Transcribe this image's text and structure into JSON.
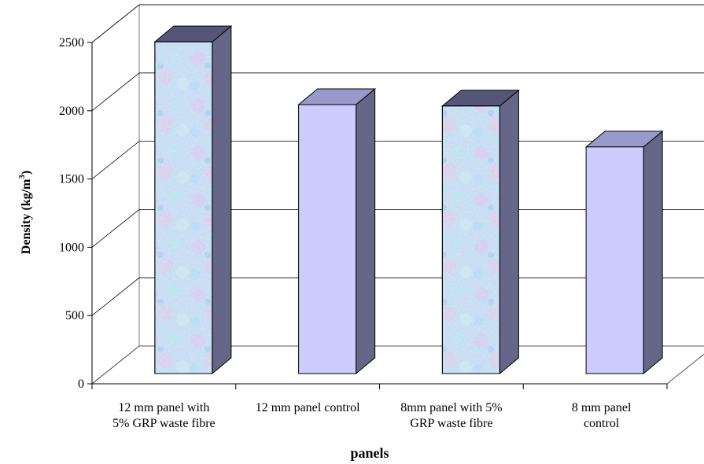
{
  "chart_data": {
    "type": "bar",
    "style": "3d-column",
    "categories": [
      [
        "12 mm panel with",
        "5% GRP waste fibre"
      ],
      [
        "12 mm panel control"
      ],
      [
        "8mm panel with 5%",
        "GRP waste fibre"
      ],
      [
        "8 mm panel",
        "control"
      ]
    ],
    "values": [
      2430,
      1970,
      1960,
      1660
    ],
    "bar_fill": [
      "textured",
      "plain",
      "textured",
      "plain"
    ],
    "xlabel": "panels",
    "ylabel_main": "Density (kg/m",
    "ylabel_sup": "3",
    "ylabel_end": ")",
    "ylim": [
      0,
      2500
    ],
    "yticks": [
      "0",
      "500",
      "1000",
      "1500",
      "2000",
      "2500"
    ],
    "grid": true,
    "legend": "none",
    "colors": {
      "front": "#ccccff",
      "top": "#9999cc",
      "side": "#666688",
      "textured_front": "#c4d8f0",
      "grid": "#000000"
    }
  }
}
